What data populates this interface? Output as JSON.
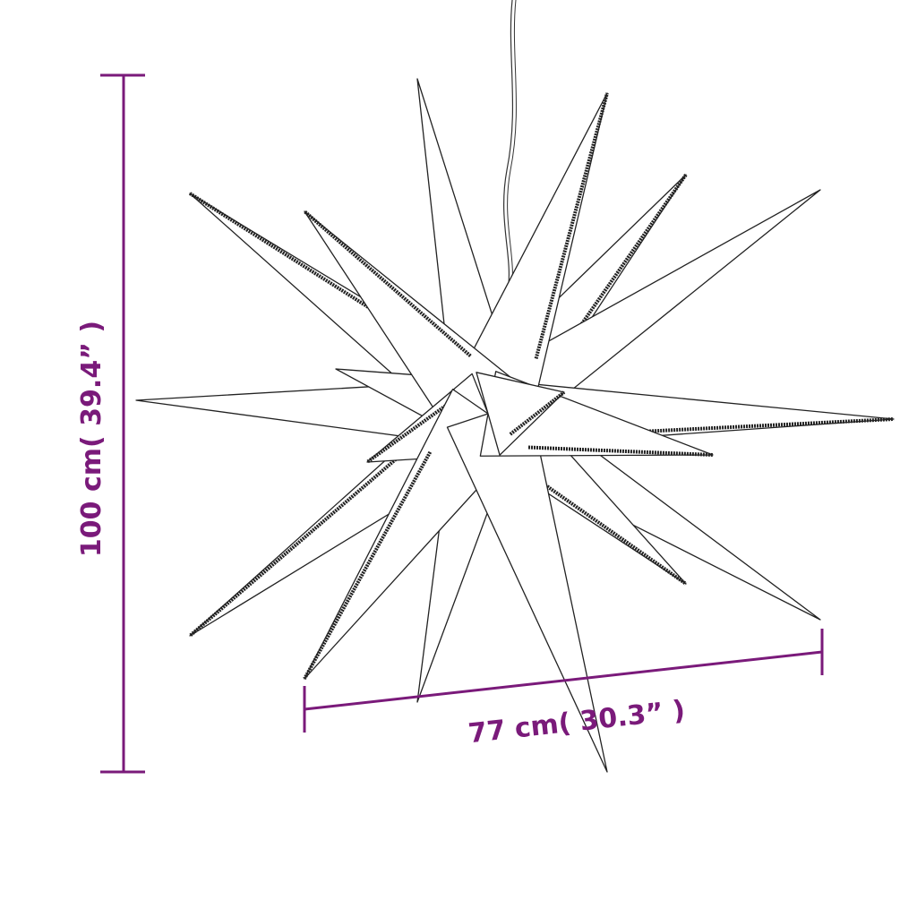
{
  "colors": {
    "dimension": "#7a1a7a",
    "outline": "#222222",
    "background": "#ffffff"
  },
  "dimensions": {
    "height_label": "100 cm( 39.4” )",
    "width_label": "77 cm( 30.3” )"
  },
  "product": {
    "subject": "3D star lamp with hanging cable"
  }
}
